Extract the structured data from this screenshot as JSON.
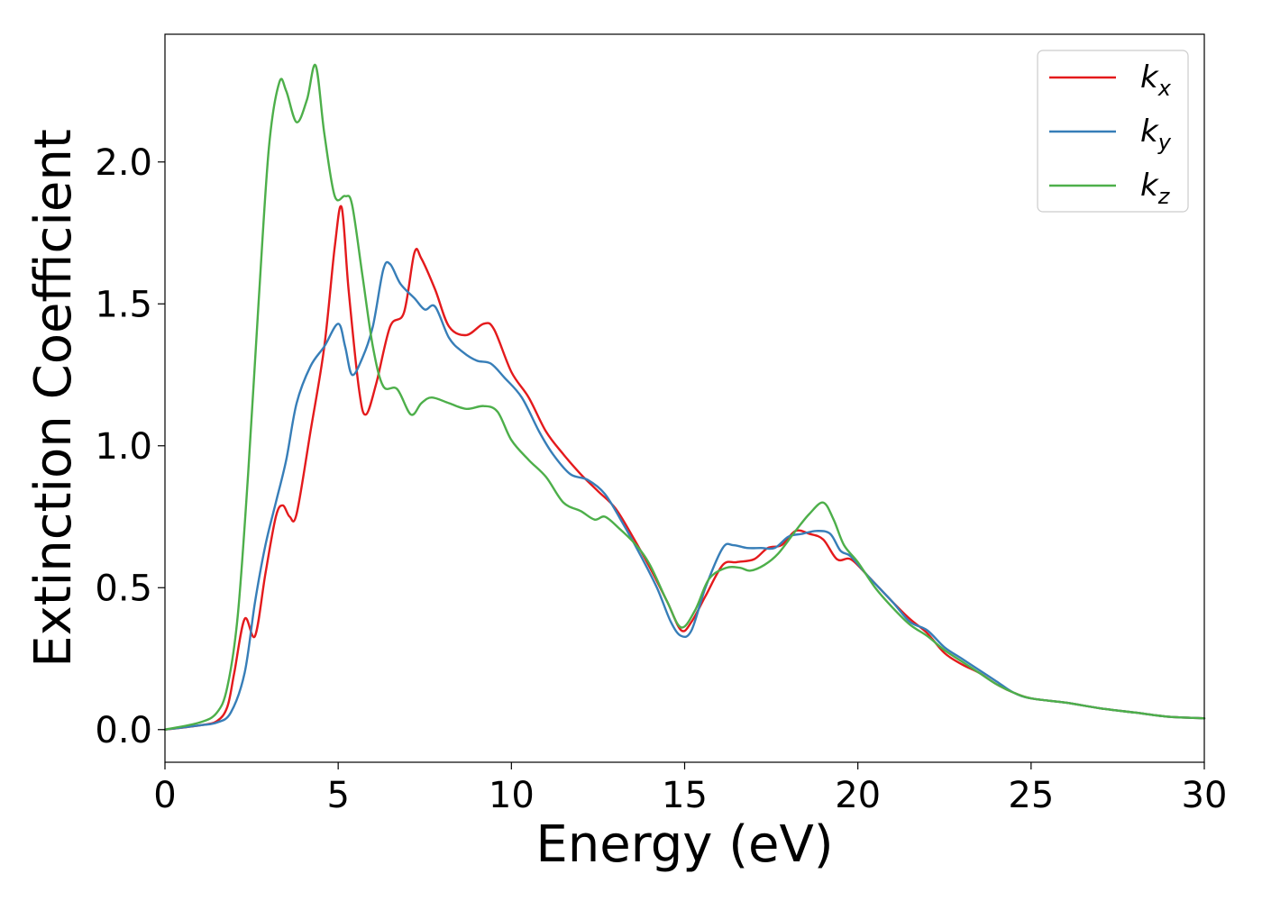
{
  "chart_data": {
    "type": "line",
    "xlabel": "Energy (eV)",
    "ylabel": "Extinction Coefficient",
    "xlim": [
      0,
      30
    ],
    "ylim": [
      -0.115,
      2.45
    ],
    "xticks": [
      0,
      5,
      10,
      15,
      20,
      25,
      30
    ],
    "xtick_labels": [
      "0",
      "5",
      "10",
      "15",
      "20",
      "25",
      "30"
    ],
    "yticks": [
      0.0,
      0.5,
      1.0,
      1.5,
      2.0
    ],
    "ytick_labels": [
      "0.0",
      "0.5",
      "1.0",
      "1.5",
      "2.0"
    ],
    "grid": false,
    "legend_position": "top-right",
    "series": [
      {
        "name": "k",
        "subscript": "x",
        "color": "#e41a1c",
        "points": [
          [
            0,
            0
          ],
          [
            1,
            0.015
          ],
          [
            1.5,
            0.03
          ],
          [
            1.8,
            0.08
          ],
          [
            2.0,
            0.2
          ],
          [
            2.3,
            0.39
          ],
          [
            2.6,
            0.33
          ],
          [
            2.9,
            0.55
          ],
          [
            3.2,
            0.75
          ],
          [
            3.4,
            0.79
          ],
          [
            3.6,
            0.75
          ],
          [
            3.8,
            0.76
          ],
          [
            4.2,
            1.05
          ],
          [
            4.6,
            1.35
          ],
          [
            4.9,
            1.7
          ],
          [
            5.1,
            1.84
          ],
          [
            5.3,
            1.55
          ],
          [
            5.6,
            1.2
          ],
          [
            5.8,
            1.11
          ],
          [
            6.1,
            1.22
          ],
          [
            6.5,
            1.42
          ],
          [
            6.9,
            1.47
          ],
          [
            7.2,
            1.68
          ],
          [
            7.4,
            1.66
          ],
          [
            7.8,
            1.55
          ],
          [
            8.2,
            1.42
          ],
          [
            8.7,
            1.39
          ],
          [
            9.2,
            1.43
          ],
          [
            9.5,
            1.41
          ],
          [
            10.0,
            1.26
          ],
          [
            10.5,
            1.17
          ],
          [
            11.0,
            1.05
          ],
          [
            11.5,
            0.97
          ],
          [
            12.0,
            0.9
          ],
          [
            12.5,
            0.84
          ],
          [
            13.0,
            0.78
          ],
          [
            13.5,
            0.68
          ],
          [
            14.0,
            0.57
          ],
          [
            14.5,
            0.45
          ],
          [
            14.9,
            0.35
          ],
          [
            15.2,
            0.38
          ],
          [
            15.6,
            0.47
          ],
          [
            16.1,
            0.58
          ],
          [
            16.5,
            0.59
          ],
          [
            17.0,
            0.6
          ],
          [
            17.4,
            0.64
          ],
          [
            17.8,
            0.65
          ],
          [
            18.2,
            0.7
          ],
          [
            18.6,
            0.69
          ],
          [
            19.0,
            0.67
          ],
          [
            19.4,
            0.6
          ],
          [
            19.8,
            0.6
          ],
          [
            20.3,
            0.54
          ],
          [
            21.0,
            0.45
          ],
          [
            21.5,
            0.39
          ],
          [
            22.0,
            0.34
          ],
          [
            22.5,
            0.27
          ],
          [
            23.0,
            0.23
          ],
          [
            23.5,
            0.2
          ],
          [
            24.0,
            0.16
          ],
          [
            24.5,
            0.13
          ],
          [
            25.0,
            0.11
          ],
          [
            26.0,
            0.095
          ],
          [
            27.0,
            0.075
          ],
          [
            28.0,
            0.06
          ],
          [
            29.0,
            0.045
          ],
          [
            30.0,
            0.04
          ]
        ]
      },
      {
        "name": "k",
        "subscript": "y",
        "color": "#377eb8",
        "points": [
          [
            0,
            0
          ],
          [
            1,
            0.015
          ],
          [
            1.5,
            0.025
          ],
          [
            1.9,
            0.06
          ],
          [
            2.3,
            0.2
          ],
          [
            2.6,
            0.45
          ],
          [
            2.9,
            0.65
          ],
          [
            3.2,
            0.8
          ],
          [
            3.5,
            0.95
          ],
          [
            3.8,
            1.15
          ],
          [
            4.2,
            1.28
          ],
          [
            4.6,
            1.35
          ],
          [
            5.0,
            1.43
          ],
          [
            5.2,
            1.35
          ],
          [
            5.4,
            1.25
          ],
          [
            5.7,
            1.31
          ],
          [
            6.0,
            1.42
          ],
          [
            6.3,
            1.62
          ],
          [
            6.5,
            1.64
          ],
          [
            6.8,
            1.57
          ],
          [
            7.2,
            1.52
          ],
          [
            7.5,
            1.48
          ],
          [
            7.8,
            1.49
          ],
          [
            8.2,
            1.38
          ],
          [
            8.6,
            1.33
          ],
          [
            9.0,
            1.3
          ],
          [
            9.4,
            1.29
          ],
          [
            9.8,
            1.24
          ],
          [
            10.3,
            1.17
          ],
          [
            10.8,
            1.05
          ],
          [
            11.2,
            0.97
          ],
          [
            11.7,
            0.9
          ],
          [
            12.2,
            0.88
          ],
          [
            12.7,
            0.83
          ],
          [
            13.2,
            0.73
          ],
          [
            13.7,
            0.62
          ],
          [
            14.2,
            0.5
          ],
          [
            14.6,
            0.38
          ],
          [
            14.9,
            0.33
          ],
          [
            15.2,
            0.35
          ],
          [
            15.6,
            0.5
          ],
          [
            16.1,
            0.64
          ],
          [
            16.4,
            0.65
          ],
          [
            16.8,
            0.64
          ],
          [
            17.2,
            0.64
          ],
          [
            17.6,
            0.64
          ],
          [
            18.0,
            0.68
          ],
          [
            18.4,
            0.69
          ],
          [
            18.8,
            0.7
          ],
          [
            19.2,
            0.69
          ],
          [
            19.5,
            0.63
          ],
          [
            19.8,
            0.61
          ],
          [
            20.3,
            0.54
          ],
          [
            21.0,
            0.45
          ],
          [
            21.5,
            0.38
          ],
          [
            22.0,
            0.35
          ],
          [
            22.5,
            0.29
          ],
          [
            23.0,
            0.25
          ],
          [
            23.5,
            0.21
          ],
          [
            24.0,
            0.17
          ],
          [
            24.5,
            0.13
          ],
          [
            25.0,
            0.11
          ],
          [
            26.0,
            0.095
          ],
          [
            27.0,
            0.075
          ],
          [
            28.0,
            0.06
          ],
          [
            29.0,
            0.045
          ],
          [
            30.0,
            0.04
          ]
        ]
      },
      {
        "name": "k",
        "subscript": "z",
        "color": "#4daf4a",
        "points": [
          [
            0,
            0
          ],
          [
            1,
            0.025
          ],
          [
            1.5,
            0.06
          ],
          [
            1.8,
            0.15
          ],
          [
            2.1,
            0.4
          ],
          [
            2.4,
            0.9
          ],
          [
            2.7,
            1.5
          ],
          [
            3.0,
            2.05
          ],
          [
            3.3,
            2.28
          ],
          [
            3.5,
            2.25
          ],
          [
            3.8,
            2.14
          ],
          [
            4.1,
            2.22
          ],
          [
            4.35,
            2.34
          ],
          [
            4.6,
            2.1
          ],
          [
            4.9,
            1.88
          ],
          [
            5.2,
            1.88
          ],
          [
            5.4,
            1.85
          ],
          [
            5.7,
            1.6
          ],
          [
            6.0,
            1.35
          ],
          [
            6.3,
            1.21
          ],
          [
            6.7,
            1.2
          ],
          [
            7.1,
            1.11
          ],
          [
            7.4,
            1.15
          ],
          [
            7.7,
            1.17
          ],
          [
            8.2,
            1.15
          ],
          [
            8.7,
            1.13
          ],
          [
            9.2,
            1.14
          ],
          [
            9.6,
            1.12
          ],
          [
            10.0,
            1.02
          ],
          [
            10.5,
            0.95
          ],
          [
            11.0,
            0.89
          ],
          [
            11.5,
            0.8
          ],
          [
            12.0,
            0.77
          ],
          [
            12.4,
            0.74
          ],
          [
            12.7,
            0.75
          ],
          [
            13.1,
            0.71
          ],
          [
            13.6,
            0.65
          ],
          [
            14.0,
            0.58
          ],
          [
            14.5,
            0.45
          ],
          [
            14.9,
            0.36
          ],
          [
            15.3,
            0.42
          ],
          [
            15.7,
            0.53
          ],
          [
            16.2,
            0.57
          ],
          [
            16.6,
            0.57
          ],
          [
            16.9,
            0.56
          ],
          [
            17.3,
            0.58
          ],
          [
            17.7,
            0.62
          ],
          [
            18.2,
            0.7
          ],
          [
            18.6,
            0.76
          ],
          [
            19.0,
            0.8
          ],
          [
            19.3,
            0.74
          ],
          [
            19.6,
            0.65
          ],
          [
            20.0,
            0.59
          ],
          [
            20.5,
            0.5
          ],
          [
            21.0,
            0.43
          ],
          [
            21.5,
            0.37
          ],
          [
            22.0,
            0.33
          ],
          [
            22.5,
            0.28
          ],
          [
            23.0,
            0.24
          ],
          [
            23.5,
            0.2
          ],
          [
            24.0,
            0.16
          ],
          [
            24.5,
            0.13
          ],
          [
            25.0,
            0.11
          ],
          [
            26.0,
            0.095
          ],
          [
            27.0,
            0.075
          ],
          [
            28.0,
            0.06
          ],
          [
            29.0,
            0.045
          ],
          [
            30.0,
            0.04
          ]
        ]
      }
    ]
  }
}
